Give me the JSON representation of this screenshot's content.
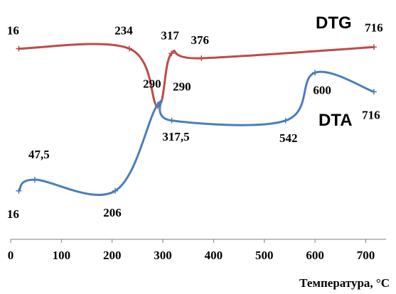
{
  "chart_data": {
    "type": "line",
    "xlabel": "Температура, °C",
    "xlim": [
      0,
      740
    ],
    "x_ticks": [
      0,
      100,
      200,
      300,
      400,
      500,
      600,
      700
    ],
    "grid": false,
    "series": [
      {
        "name": "DTG",
        "color": "#be4b48",
        "points": [
          [
            16,
            0.94
          ],
          [
            234,
            0.94
          ],
          [
            290,
            0.58
          ],
          [
            317,
            0.91
          ],
          [
            376,
            0.88
          ],
          [
            716,
            0.95
          ]
        ],
        "point_labels": [
          "16",
          "234",
          "290",
          "317",
          "376",
          "716"
        ]
      },
      {
        "name": "DTA",
        "color": "#4a7ebb",
        "points": [
          [
            16,
            0.05
          ],
          [
            47.5,
            0.12
          ],
          [
            206,
            0.05
          ],
          [
            290,
            0.59
          ],
          [
            317.5,
            0.49
          ],
          [
            542,
            0.49
          ],
          [
            600,
            0.79
          ],
          [
            716,
            0.67
          ]
        ],
        "point_labels": [
          "16",
          "47,5",
          "206",
          "290",
          "317,5",
          "542",
          "600",
          "716"
        ]
      }
    ]
  }
}
